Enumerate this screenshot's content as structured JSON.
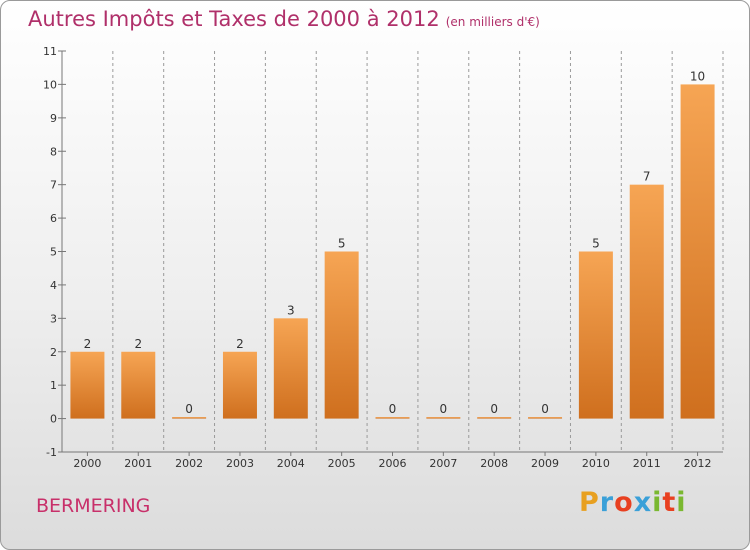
{
  "chart_data": {
    "type": "bar",
    "title": "Autres Impôts et Taxes de 2000 à 2012",
    "unit_label": "(en milliers d'€)",
    "categories": [
      "2000",
      "2001",
      "2002",
      "2003",
      "2004",
      "2005",
      "2006",
      "2007",
      "2008",
      "2009",
      "2010",
      "2011",
      "2012"
    ],
    "values": [
      2,
      2,
      0,
      2,
      3,
      5,
      0,
      0,
      0,
      0,
      5,
      7,
      10
    ],
    "ylim": [
      -1,
      11
    ],
    "yticks": [
      "-1",
      "0",
      "1",
      "2",
      "3",
      "4",
      "5",
      "6",
      "7",
      "8",
      "9",
      "10",
      "11"
    ],
    "grid": "vertical dashed at category boundaries",
    "bar_color": "#f0953f"
  },
  "commune": "BERMERING",
  "logo": {
    "letters": [
      "P",
      "r",
      "o",
      "x",
      "i",
      "t",
      "i"
    ],
    "colors": [
      "#e8a020",
      "#3aa0d8",
      "#e84020",
      "#3aa0d8",
      "#7ab830",
      "#e84020",
      "#7ab830"
    ]
  }
}
